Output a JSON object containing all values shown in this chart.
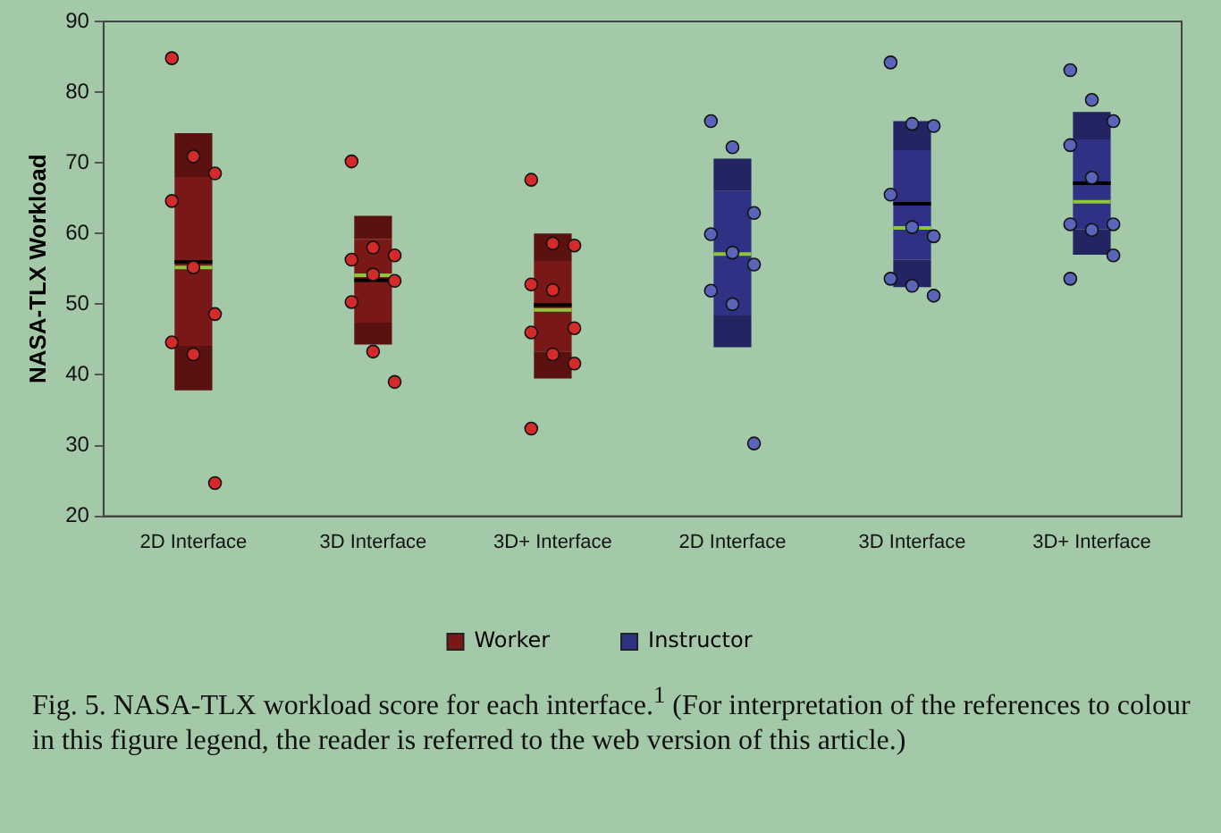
{
  "chart_data": {
    "type": "box",
    "ylabel": "NASA-TLX Workload",
    "categories": [
      "2D Interface",
      "3D Interface",
      "3D+ Interface",
      "2D Interface",
      "3D Interface",
      "3D+ Interface"
    ],
    "ylim": [
      20,
      90
    ],
    "yticks": [
      20,
      30,
      40,
      50,
      60,
      70,
      80,
      90
    ],
    "grid": false,
    "legend": "bottom",
    "series": [
      {
        "name": "Worker",
        "color": "#7a1717",
        "boxes": [
          {
            "low": 37.8,
            "q1": 44.1,
            "median": 55.2,
            "q3": 68.0,
            "high": 74.2,
            "mean": 56.0
          },
          {
            "low": 44.3,
            "q1": 47.4,
            "median": 54.1,
            "q3": 59.2,
            "high": 62.5,
            "mean": 53.4
          },
          {
            "low": 39.5,
            "q1": 43.3,
            "median": 49.2,
            "q3": 56.1,
            "high": 60.0,
            "mean": 49.9
          },
          null,
          null,
          null
        ]
      },
      {
        "name": "Instructor",
        "color": "#2e3184",
        "boxes": [
          null,
          null,
          null,
          {
            "low": 43.9,
            "q1": 48.4,
            "median": 57.1,
            "q3": 66.0,
            "high": 70.6
          },
          {
            "low": 52.4,
            "q1": 56.3,
            "median": 60.8,
            "q3": 71.8,
            "high": 75.9,
            "mean": 64.2
          },
          {
            "low": 57.0,
            "q1": 60.6,
            "median": 64.5,
            "q3": 73.3,
            "high": 77.2,
            "mean": 67.1
          }
        ]
      },
      {
        "type": "scatter",
        "colors": [
          "#d42a2a",
          "#d42a2a",
          "#d42a2a",
          "#5a64b8",
          "#5a64b8",
          "#5a64b8"
        ],
        "values": [
          84.8,
          70.2,
          67.6,
          75.9,
          84.2,
          83.1
        ]
      },
      {
        "type": "scatter",
        "colors": [
          "#d42a2a",
          "#d42a2a",
          "#d42a2a",
          "#5a64b8",
          "#5a64b8",
          "#5a64b8"
        ],
        "values": [
          70.9,
          58.0,
          58.6,
          72.2,
          75.5,
          78.9
        ]
      },
      {
        "type": "scatter",
        "colors": [
          "#d42a2a",
          "#d42a2a",
          "#d42a2a",
          "#5a64b8",
          "#5a64b8",
          "#5a64b8"
        ],
        "values": [
          68.5,
          56.9,
          58.3,
          62.9,
          75.2,
          75.9
        ]
      },
      {
        "type": "scatter",
        "colors": [
          "#d42a2a",
          "#d42a2a",
          "#d42a2a",
          "#5a64b8",
          "#5a64b8",
          "#5a64b8"
        ],
        "values": [
          64.6,
          56.3,
          52.8,
          59.9,
          65.5,
          72.5
        ]
      },
      {
        "type": "scatter",
        "colors": [
          "#d42a2a",
          "#d42a2a",
          "#d42a2a",
          "#5a64b8",
          "#5a64b8",
          "#5a64b8"
        ],
        "values": [
          55.2,
          54.2,
          52.0,
          57.3,
          60.9,
          67.9
        ]
      },
      {
        "type": "scatter",
        "colors": [
          "#d42a2a",
          "#d42a2a",
          "#d42a2a",
          "#5a64b8",
          "#5a64b8",
          "#5a64b8"
        ],
        "values": [
          48.6,
          53.3,
          46.6,
          55.6,
          59.6,
          61.3
        ]
      },
      {
        "type": "scatter",
        "colors": [
          "#d42a2a",
          "#d42a2a",
          "#d42a2a",
          "#5a64b8",
          "#5a64b8",
          "#5a64b8"
        ],
        "values": [
          44.6,
          50.3,
          46.0,
          51.9,
          53.6,
          61.3
        ]
      },
      {
        "type": "scatter",
        "colors": [
          "#d42a2a",
          "#d42a2a",
          "#d42a2a",
          "#5a64b8",
          "#5a64b8",
          "#5a64b8"
        ],
        "values": [
          42.9,
          43.3,
          42.9,
          50.0,
          52.6,
          60.5
        ]
      },
      {
        "type": "scatter",
        "colors": [
          "#d42a2a",
          "#d42a2a",
          "#d42a2a",
          "#5a64b8",
          "#5a64b8",
          "#5a64b8"
        ],
        "values": [
          24.7,
          39.0,
          41.6,
          30.3,
          51.2,
          56.9
        ]
      },
      {
        "type": "scatter",
        "colors": [
          "#d42a2a",
          "#d42a2a",
          "#d42a2a",
          "#5a64b8",
          "#5a64b8",
          "#5a64b8"
        ],
        "values": [
          null,
          null,
          32.4,
          null,
          null,
          53.6
        ]
      }
    ],
    "annotations": [
      "Fig. 5. NASA-TLX workload score for each interface.$^{1}$ (For interpretation of the references to colour in this figure legend, the reader is referred to the web version of this article.)"
    ]
  }
}
